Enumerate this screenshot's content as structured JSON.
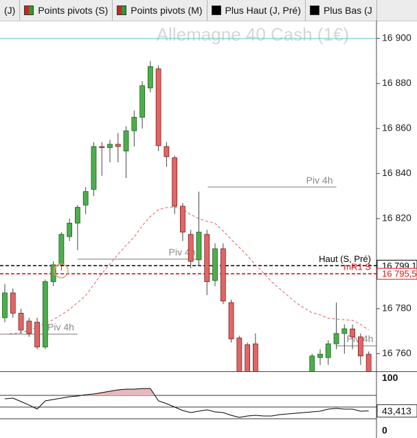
{
  "toolbar": {
    "tabs": [
      {
        "label": "(J)"
      },
      {
        "label": "Points pivots (S)",
        "icon": [
          "#c62828",
          "#2e9a2e"
        ]
      },
      {
        "label": "Points pivots (M)",
        "icon": [
          "#c62828",
          "#2e9a2e"
        ]
      },
      {
        "label": "Plus Haut (J, Pré)",
        "icon": [
          "#000000"
        ]
      },
      {
        "label": "Plus Bas (J",
        "icon": [
          "#000000"
        ]
      }
    ]
  },
  "chart_data": {
    "type": "candlestick",
    "title": "Allemagne 40 Cash (1€)",
    "series": [
      {
        "up_color": "#4cae4c",
        "down_color": "#e06666",
        "open": [
          16776,
          16787,
          16778,
          16774.5,
          16774,
          16763,
          16792,
          16799.5,
          16812,
          16818,
          16826,
          16833,
          16852,
          16851.5,
          16853,
          16850,
          16859,
          16865,
          16878,
          16886.5,
          16852,
          16847,
          16825.5,
          16813,
          16801.7,
          16813,
          16792.5,
          16806.6,
          16782.7,
          16767,
          16764,
          16764.4,
          null,
          null,
          null,
          null,
          null,
          null,
          16750,
          16758.3,
          16758.3,
          16764.4,
          16769,
          16771,
          16767.5,
          16759.8
        ],
        "high": [
          16791,
          16789,
          16780,
          16776,
          16776,
          16793,
          16801,
          16814,
          16820,
          16826,
          16834,
          16854,
          16854,
          16855,
          16858,
          16861,
          16868,
          16881,
          16890,
          16888,
          16854,
          16848,
          16827,
          16815,
          16832,
          16815,
          16809,
          16809,
          16784,
          16768,
          16765,
          16769,
          null,
          null,
          null,
          null,
          null,
          null,
          16760,
          16762,
          16766,
          16782.7,
          16773,
          16773,
          16769,
          16761
        ],
        "low": [
          16774,
          16776,
          16769,
          16767.5,
          16762,
          16762,
          16790,
          16797,
          16810,
          16806,
          16822,
          16830,
          16839,
          16845,
          16845,
          16838,
          16852,
          16860,
          16876,
          16850,
          16843,
          16822,
          16810,
          16798,
          16799,
          16786,
          16790,
          16782,
          16765,
          16750,
          16750,
          16748,
          null,
          null,
          null,
          null,
          null,
          null,
          16748,
          16755,
          16755,
          16762,
          16760,
          16762,
          16755,
          16748
        ],
        "close": [
          16787,
          16778,
          16770.5,
          16769,
          16763,
          16792,
          16799.5,
          16813,
          16818,
          16825,
          16832,
          16852,
          16851.5,
          16853,
          16852,
          16859,
          16865,
          16879,
          16887.5,
          16852.4,
          16847.5,
          16825.5,
          16814,
          16801,
          16814,
          16792,
          16806.6,
          16783.4,
          16766.6,
          16752,
          16752,
          16750,
          null,
          null,
          null,
          null,
          null,
          null,
          16759,
          16759.8,
          16764.4,
          16769,
          16771.1,
          16767.5,
          16759,
          16752
        ]
      }
    ],
    "overlays": [
      {
        "type": "line",
        "color": "#e07a7a",
        "dash": true,
        "values": [
          16768.7,
          16769.0,
          16769.3,
          16770.5,
          16771.8,
          16773.6,
          16775.1,
          16777.3,
          16779.7,
          16782.7,
          16785.8,
          16790.7,
          16795.6,
          16799.8,
          16804.1,
          16808.1,
          16811.8,
          16816.9,
          16820.9,
          16824.0,
          16824.9,
          16825.2,
          16824.0,
          16821.8,
          16820.0,
          16818.8,
          16817.9,
          16814.5,
          16810.8,
          16807.2,
          16803.5,
          16799.5,
          16795.9,
          16791.9,
          16788.9,
          16785.8,
          16782.7,
          16780.3,
          16778.2,
          16777.3,
          16775.7,
          16775.4,
          16775.1,
          16774.8,
          16773.0,
          16770.5
        ]
      }
    ],
    "levels": [
      {
        "value": 16900,
        "color": "#40d0d0"
      },
      {
        "value": 16799.1,
        "color": "#000000",
        "dash": true,
        "label": "Haut (S, Pré)",
        "value_label": "16 799,1"
      },
      {
        "value": 16795.5,
        "color": "#e01010",
        "dash": true,
        "label": "mR1 S",
        "value_label": "16 795,5"
      }
    ],
    "pivots": [
      {
        "label": "Piv 4h",
        "value": 16834.0,
        "x": [
          25.1,
          41.0
        ]
      },
      {
        "label": "Piv 4h",
        "value": 16802.0,
        "x": [
          9,
          24
        ]
      },
      {
        "label": "Piv 4h",
        "value": 16768.7,
        "x": [
          -0.6,
          9
        ]
      },
      {
        "label": "Piv 4h",
        "value": 16763.5,
        "x": [
          41,
          46
        ]
      }
    ],
    "ylim": [
      16752.2,
      16907.9
    ],
    "yticks": [
      {
        "value": 16760,
        "label": "16 760"
      },
      {
        "value": 16780,
        "label": "16 780"
      },
      {
        "value": 16820,
        "label": "16 820"
      },
      {
        "value": 16840,
        "label": "16 840"
      },
      {
        "value": 16860,
        "label": "16 860"
      },
      {
        "value": 16880,
        "label": "16 880"
      },
      {
        "value": 16900,
        "label": "16 900"
      }
    ],
    "indicator": {
      "type": "line",
      "color": "#000000",
      "fill_color": "#e8b8bc",
      "ylim": [
        0,
        100
      ],
      "yticks": [
        100,
        0
      ],
      "levels": [
        70,
        50,
        30
      ],
      "values": [
        64.1,
        65.3,
        59.4,
        53.5,
        46.5,
        60.6,
        62.9,
        65.3,
        67.6,
        68.8,
        71.2,
        72.4,
        74.7,
        77.1,
        79.4,
        80.6,
        80.6,
        81.8,
        81.8,
        60.6,
        55.9,
        50,
        44.1,
        40.6,
        42.9,
        45.3,
        41.8,
        40.6,
        35.9,
        32.4,
        34.7,
        35.9,
        34.7,
        34.7,
        37.1,
        38.2,
        39.4,
        40.6,
        41.8,
        42.9,
        46.5,
        47.6,
        46.5,
        46.5,
        42.9,
        43.413
      ],
      "last_label": "43,413"
    }
  }
}
